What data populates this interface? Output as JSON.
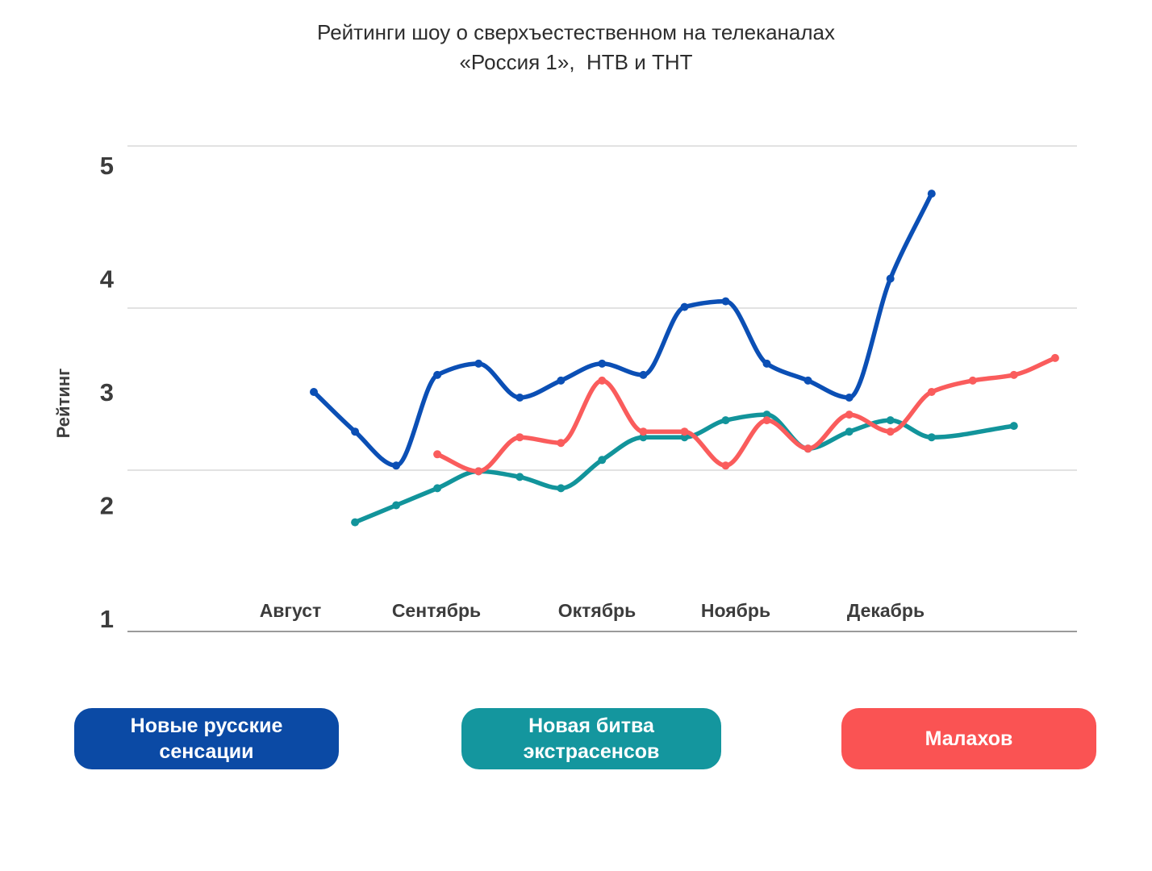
{
  "chart": {
    "title_line1": "Рейтинги шоу о сверхъестественном на телеканалах",
    "title_line2": "«Россия 1»,  НТВ и ТНТ",
    "ylabel": "Рейтинг"
  },
  "chart_data": {
    "type": "line",
    "title": "Рейтинги шоу о сверхъестественном на телеканалах «Россия 1», НТВ и ТНТ",
    "xlabel": "",
    "ylabel": "Рейтинг",
    "ylim": [
      1,
      5
    ],
    "y_ticks": [
      5,
      4,
      3,
      2,
      1
    ],
    "x_unit": "week",
    "categories_months": [
      "Август",
      "Сентябрь",
      "Октябрь",
      "Ноябрь",
      "Декабрь"
    ],
    "grid": "horizontal",
    "legend_position": "bottom",
    "series": [
      {
        "name": "Новая битва экстрасенсов",
        "color": "#12949b",
        "points": [
          [
            1,
            1.85
          ],
          [
            2,
            2.0
          ],
          [
            3,
            2.15
          ],
          [
            4,
            2.3
          ],
          [
            5,
            2.25
          ],
          [
            6,
            2.15
          ],
          [
            7,
            2.4
          ],
          [
            8,
            2.6
          ],
          [
            9,
            2.6
          ],
          [
            10,
            2.75
          ],
          [
            11,
            2.8
          ],
          [
            12,
            2.5
          ],
          [
            13,
            2.65
          ],
          [
            14,
            2.75
          ],
          [
            15,
            2.6
          ],
          [
            17,
            2.7
          ]
        ]
      },
      {
        "name": "Малахов",
        "color": "#fa5c5c",
        "points": [
          [
            3,
            2.45
          ],
          [
            4,
            2.3
          ],
          [
            5,
            2.6
          ],
          [
            6,
            2.55
          ],
          [
            7,
            3.1
          ],
          [
            8,
            2.65
          ],
          [
            9,
            2.65
          ],
          [
            10,
            2.35
          ],
          [
            11,
            2.75
          ],
          [
            12,
            2.5
          ],
          [
            13,
            2.8
          ],
          [
            14,
            2.65
          ],
          [
            15,
            3.0
          ],
          [
            16,
            3.1
          ],
          [
            17,
            3.15
          ],
          [
            18,
            3.3
          ]
        ]
      },
      {
        "name": "Новые русские сенсации",
        "color": "#0b4fb5",
        "points": [
          [
            0,
            3.0
          ],
          [
            1,
            2.65
          ],
          [
            2,
            2.35
          ],
          [
            3,
            3.15
          ],
          [
            4,
            3.25
          ],
          [
            5,
            2.95
          ],
          [
            6,
            3.1
          ],
          [
            7,
            3.25
          ],
          [
            8,
            3.15
          ],
          [
            9,
            3.75
          ],
          [
            10,
            3.8
          ],
          [
            11,
            3.25
          ],
          [
            12,
            3.1
          ],
          [
            13,
            2.95
          ],
          [
            14,
            4.0
          ],
          [
            15,
            4.75
          ]
        ]
      }
    ]
  },
  "legend": {
    "items": [
      {
        "label": "Новые русские сенсации",
        "color": "#0b4aa5"
      },
      {
        "label": "Новая битва экстрасенсов",
        "color": "#14969e"
      },
      {
        "label": "Малахов",
        "color": "#fa5353"
      }
    ]
  }
}
